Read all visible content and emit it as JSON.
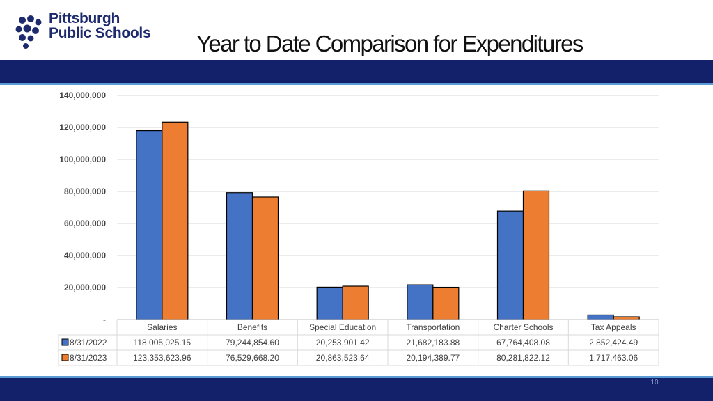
{
  "header": {
    "logo_line1": "Pittsburgh",
    "logo_line2": "Public Schools",
    "title": "Year to Date Comparison for Expenditures"
  },
  "footer": {
    "page_number": "10"
  },
  "colors": {
    "navy": "#13216b",
    "accent_line": "#5b9bd5",
    "series_2022": "#4472c4",
    "series_2023": "#ed7d31"
  },
  "chart_data": {
    "type": "bar",
    "title": "",
    "categories": [
      "Salaries",
      "Benefits",
      "Special Education",
      "Transportation",
      "Charter Schools",
      "Tax Appeals"
    ],
    "series": [
      {
        "name": "8/31/2022",
        "color": "#4472c4",
        "values": [
          118005025.15,
          79244854.6,
          20253901.42,
          21682183.88,
          67764408.08,
          2852424.49
        ],
        "labels": [
          "118,005,025.15",
          "79,244,854.60",
          "20,253,901.42",
          "21,682,183.88",
          "67,764,408.08",
          "2,852,424.49"
        ]
      },
      {
        "name": "8/31/2023",
        "color": "#ed7d31",
        "values": [
          123353623.96,
          76529668.2,
          20863523.64,
          20194389.77,
          80281822.12,
          1717463.06
        ],
        "labels": [
          "123,353,623.96",
          "76,529,668.20",
          "20,863,523.64",
          "20,194,389.77",
          "80,281,822.12",
          "1,717,463.06"
        ]
      }
    ],
    "ylim": [
      0,
      140000000
    ],
    "y_ticks": [
      0,
      20000000,
      40000000,
      60000000,
      80000000,
      100000000,
      120000000,
      140000000
    ],
    "y_tick_labels": [
      "-",
      "20,000,000",
      "40,000,000",
      "60,000,000",
      "80,000,000",
      "100,000,000",
      "120,000,000",
      "140,000,000"
    ],
    "grid": true,
    "legend": "data-table-left",
    "data_table": true
  }
}
